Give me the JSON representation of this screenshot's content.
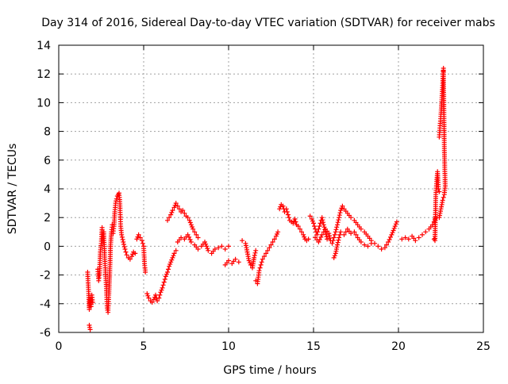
{
  "chart_data": {
    "type": "scatter",
    "title": "Day 314 of 2016, Sidereal Day-to-day VTEC variation (SDTVAR) for receiver mabs",
    "xlabel": "GPS time / hours",
    "ylabel": "SDTVAR / TECUs",
    "xlim": [
      0,
      25
    ],
    "ylim": [
      -6,
      14
    ],
    "xticks": [
      0,
      5,
      10,
      15,
      20,
      25
    ],
    "yticks": [
      -6,
      -4,
      -2,
      0,
      2,
      4,
      6,
      8,
      10,
      12,
      14
    ],
    "grid": true,
    "marker": "+",
    "color": "#ff0000",
    "series": [
      {
        "name": "SDTVAR",
        "segments": [
          [
            [
              1.7,
              -1.8
            ],
            [
              1.75,
              -3.0
            ],
            [
              1.8,
              -4.4
            ],
            [
              1.85,
              -3.6
            ],
            [
              1.9,
              -4.2
            ],
            [
              1.95,
              -3.4
            ],
            [
              2.0,
              -3.9
            ]
          ],
          [
            [
              1.8,
              -5.5
            ],
            [
              1.85,
              -5.8
            ]
          ],
          [
            [
              2.3,
              -1.6
            ],
            [
              2.35,
              -2.4
            ],
            [
              2.4,
              -2.0
            ],
            [
              2.45,
              -0.4
            ],
            [
              2.5,
              0.2
            ],
            [
              2.55,
              1.3
            ],
            [
              2.6,
              0.4
            ],
            [
              2.65,
              1.0
            ],
            [
              2.7,
              -0.6
            ],
            [
              2.75,
              -1.8
            ],
            [
              2.8,
              -2.8
            ],
            [
              2.85,
              -4.3
            ],
            [
              2.9,
              -4.6
            ],
            [
              2.95,
              -3.4
            ],
            [
              3.0,
              -2.0
            ],
            [
              3.05,
              0.0
            ],
            [
              3.1,
              1.0
            ],
            [
              3.15,
              1.5
            ]
          ],
          [
            [
              3.2,
              0.9
            ],
            [
              3.25,
              1.4
            ],
            [
              3.3,
              2.4
            ],
            [
              3.35,
              3.0
            ],
            [
              3.4,
              3.3
            ],
            [
              3.45,
              3.5
            ],
            [
              3.5,
              3.6
            ],
            [
              3.55,
              3.7
            ],
            [
              3.6,
              3.1
            ],
            [
              3.62,
              2.2
            ],
            [
              3.65,
              1.4
            ],
            [
              3.7,
              0.8
            ],
            [
              3.8,
              0.3
            ],
            [
              3.9,
              -0.2
            ],
            [
              4.0,
              -0.6
            ],
            [
              4.1,
              -0.8
            ],
            [
              4.2,
              -0.9
            ],
            [
              4.3,
              -0.7
            ],
            [
              4.4,
              -0.4
            ],
            [
              4.5,
              -0.5
            ]
          ],
          [
            [
              4.6,
              0.5
            ],
            [
              4.7,
              0.8
            ],
            [
              4.8,
              0.6
            ],
            [
              4.9,
              0.4
            ],
            [
              5.0,
              0.0
            ],
            [
              5.05,
              -1.2
            ],
            [
              5.1,
              -1.8
            ]
          ],
          [
            [
              5.2,
              -3.3
            ],
            [
              5.3,
              -3.6
            ],
            [
              5.4,
              -3.8
            ],
            [
              5.5,
              -3.9
            ],
            [
              5.6,
              -3.7
            ],
            [
              5.7,
              -3.4
            ],
            [
              5.8,
              -3.8
            ],
            [
              5.9,
              -3.6
            ],
            [
              6.0,
              -3.2
            ],
            [
              6.1,
              -2.9
            ],
            [
              6.2,
              -2.5
            ],
            [
              6.3,
              -2.1
            ],
            [
              6.4,
              -1.8
            ],
            [
              6.5,
              -1.4
            ],
            [
              6.6,
              -1.1
            ],
            [
              6.7,
              -0.8
            ],
            [
              6.8,
              -0.5
            ],
            [
              6.9,
              -0.3
            ]
          ],
          [
            [
              6.4,
              1.8
            ],
            [
              6.5,
              2.0
            ],
            [
              6.6,
              2.2
            ],
            [
              6.7,
              2.5
            ],
            [
              6.8,
              2.7
            ],
            [
              6.9,
              3.0
            ],
            [
              7.0,
              2.8
            ],
            [
              7.1,
              2.6
            ],
            [
              7.2,
              2.4
            ],
            [
              7.3,
              2.5
            ],
            [
              7.4,
              2.3
            ],
            [
              7.5,
              2.1
            ],
            [
              7.6,
              2.0
            ],
            [
              7.7,
              1.8
            ],
            [
              7.8,
              1.5
            ],
            [
              7.9,
              1.2
            ],
            [
              8.0,
              1.0
            ],
            [
              8.1,
              0.8
            ],
            [
              8.2,
              0.6
            ]
          ],
          [
            [
              7.0,
              0.3
            ],
            [
              7.2,
              0.6
            ],
            [
              7.4,
              0.5
            ],
            [
              7.6,
              0.8
            ],
            [
              7.8,
              0.3
            ],
            [
              8.0,
              0.1
            ],
            [
              8.2,
              -0.2
            ],
            [
              8.4,
              0.0
            ],
            [
              8.6,
              0.3
            ],
            [
              8.8,
              -0.3
            ],
            [
              9.0,
              -0.5
            ],
            [
              9.2,
              -0.2
            ],
            [
              9.4,
              -0.1
            ],
            [
              9.6,
              0.0
            ],
            [
              9.8,
              -0.2
            ],
            [
              10.0,
              0.0
            ]
          ],
          [
            [
              9.8,
              -1.3
            ],
            [
              10.0,
              -1.0
            ],
            [
              10.2,
              -1.2
            ],
            [
              10.4,
              -0.9
            ],
            [
              10.6,
              -1.1
            ]
          ],
          [
            [
              10.8,
              0.4
            ],
            [
              11.0,
              0.2
            ],
            [
              11.1,
              -0.4
            ],
            [
              11.2,
              -1.0
            ],
            [
              11.3,
              -1.3
            ],
            [
              11.4,
              -1.5
            ],
            [
              11.5,
              -0.8
            ],
            [
              11.6,
              -0.3
            ]
          ],
          [
            [
              11.6,
              -2.4
            ],
            [
              11.7,
              -2.6
            ],
            [
              11.8,
              -1.7
            ],
            [
              11.9,
              -1.3
            ],
            [
              12.0,
              -0.9
            ],
            [
              12.2,
              -0.5
            ],
            [
              12.4,
              -0.1
            ],
            [
              12.6,
              0.3
            ],
            [
              12.8,
              0.7
            ],
            [
              12.9,
              1.0
            ]
          ],
          [
            [
              13.0,
              2.6
            ],
            [
              13.1,
              2.9
            ],
            [
              13.2,
              2.8
            ],
            [
              13.3,
              2.4
            ],
            [
              13.4,
              2.6
            ],
            [
              13.5,
              2.2
            ],
            [
              13.6,
              1.8
            ],
            [
              13.7,
              1.7
            ],
            [
              13.8,
              1.6
            ],
            [
              13.9,
              1.9
            ],
            [
              14.0,
              1.5
            ],
            [
              14.1,
              1.4
            ],
            [
              14.2,
              1.2
            ],
            [
              14.3,
              1.0
            ],
            [
              14.4,
              0.8
            ],
            [
              14.5,
              0.5
            ],
            [
              14.6,
              0.4
            ],
            [
              14.7,
              0.5
            ]
          ],
          [
            [
              14.8,
              2.1
            ],
            [
              14.9,
              1.9
            ],
            [
              15.0,
              1.6
            ],
            [
              15.1,
              1.2
            ],
            [
              15.2,
              0.8
            ],
            [
              15.3,
              1.2
            ],
            [
              15.4,
              1.6
            ],
            [
              15.5,
              2.0
            ],
            [
              15.6,
              1.5
            ],
            [
              15.7,
              1.0
            ],
            [
              15.8,
              0.5
            ]
          ],
          [
            [
              15.1,
              0.6
            ],
            [
              15.3,
              0.3
            ],
            [
              15.5,
              0.8
            ],
            [
              15.7,
              1.2
            ],
            [
              15.9,
              0.9
            ],
            [
              16.0,
              0.4
            ],
            [
              16.1,
              0.2
            ],
            [
              16.2,
              0.6
            ],
            [
              16.3,
              1.0
            ],
            [
              16.4,
              1.5
            ],
            [
              16.5,
              2.0
            ],
            [
              16.6,
              2.5
            ],
            [
              16.7,
              2.8
            ],
            [
              16.8,
              2.6
            ],
            [
              17.0,
              2.3
            ],
            [
              17.2,
              2.0
            ],
            [
              17.4,
              1.8
            ],
            [
              17.6,
              1.5
            ],
            [
              17.8,
              1.2
            ],
            [
              18.0,
              1.0
            ],
            [
              18.2,
              0.7
            ],
            [
              18.4,
              0.4
            ],
            [
              18.6,
              0.2
            ],
            [
              18.8,
              0.0
            ],
            [
              19.0,
              -0.2
            ],
            [
              19.2,
              -0.1
            ],
            [
              19.4,
              0.3
            ],
            [
              19.6,
              0.8
            ],
            [
              19.8,
              1.4
            ],
            [
              19.9,
              1.7
            ]
          ],
          [
            [
              16.2,
              -0.8
            ],
            [
              16.3,
              -0.5
            ],
            [
              16.4,
              0.1
            ],
            [
              16.5,
              0.6
            ],
            [
              16.6,
              1.0
            ],
            [
              16.8,
              0.8
            ],
            [
              17.0,
              1.2
            ],
            [
              17.2,
              0.9
            ],
            [
              17.4,
              1.0
            ],
            [
              17.6,
              0.6
            ],
            [
              17.8,
              0.3
            ],
            [
              18.0,
              0.1
            ],
            [
              18.2,
              0.0
            ],
            [
              18.4,
              0.2
            ]
          ],
          [
            [
              20.2,
              0.5
            ],
            [
              20.4,
              0.6
            ],
            [
              20.6,
              0.5
            ],
            [
              20.8,
              0.7
            ],
            [
              21.0,
              0.4
            ],
            [
              21.2,
              0.6
            ],
            [
              21.4,
              0.8
            ],
            [
              21.6,
              1.0
            ],
            [
              21.8,
              1.2
            ],
            [
              22.0,
              1.5
            ],
            [
              22.1,
              1.7
            ],
            [
              22.2,
              2.0
            ]
          ],
          [
            [
              22.1,
              0.5
            ],
            [
              22.15,
              0.4
            ],
            [
              22.2,
              3.6
            ],
            [
              22.25,
              4.5
            ],
            [
              22.3,
              5.2
            ],
            [
              22.35,
              4.0
            ],
            [
              22.4,
              3.8
            ]
          ],
          [
            [
              22.4,
              7.6
            ],
            [
              22.45,
              8.4
            ],
            [
              22.5,
              9.2
            ],
            [
              22.55,
              10.2
            ],
            [
              22.6,
              11.2
            ],
            [
              22.62,
              12.0
            ],
            [
              22.65,
              12.4
            ],
            [
              22.7,
              6.8
            ],
            [
              22.72,
              5.8
            ],
            [
              22.75,
              4.2
            ],
            [
              22.7,
              3.6
            ],
            [
              22.6,
              3.2
            ],
            [
              22.5,
              2.6
            ],
            [
              22.4,
              2.0
            ]
          ]
        ]
      }
    ]
  }
}
